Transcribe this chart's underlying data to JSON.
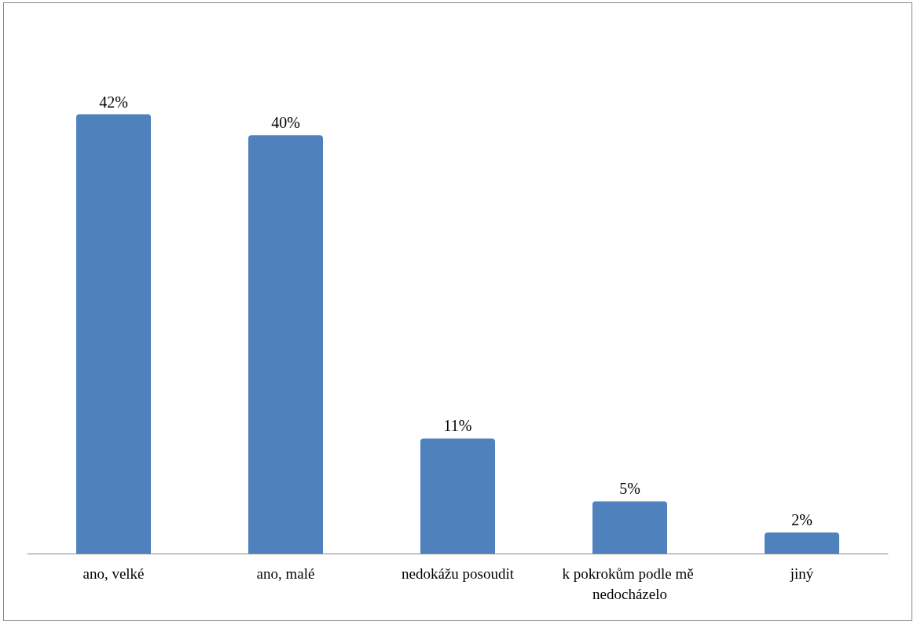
{
  "chart_data": {
    "type": "bar",
    "categories": [
      "ano, velké",
      "ano, malé",
      "nedokážu posoudit",
      "k pokrokům podle mě nedocházelo",
      "jiný"
    ],
    "series": [
      {
        "color": "#4f81bd",
        "values": [
          42,
          40,
          11,
          5,
          2
        ],
        "value_labels": [
          "42%",
          "40%",
          "11%",
          "5%",
          "2%"
        ]
      }
    ],
    "grid": false
  }
}
